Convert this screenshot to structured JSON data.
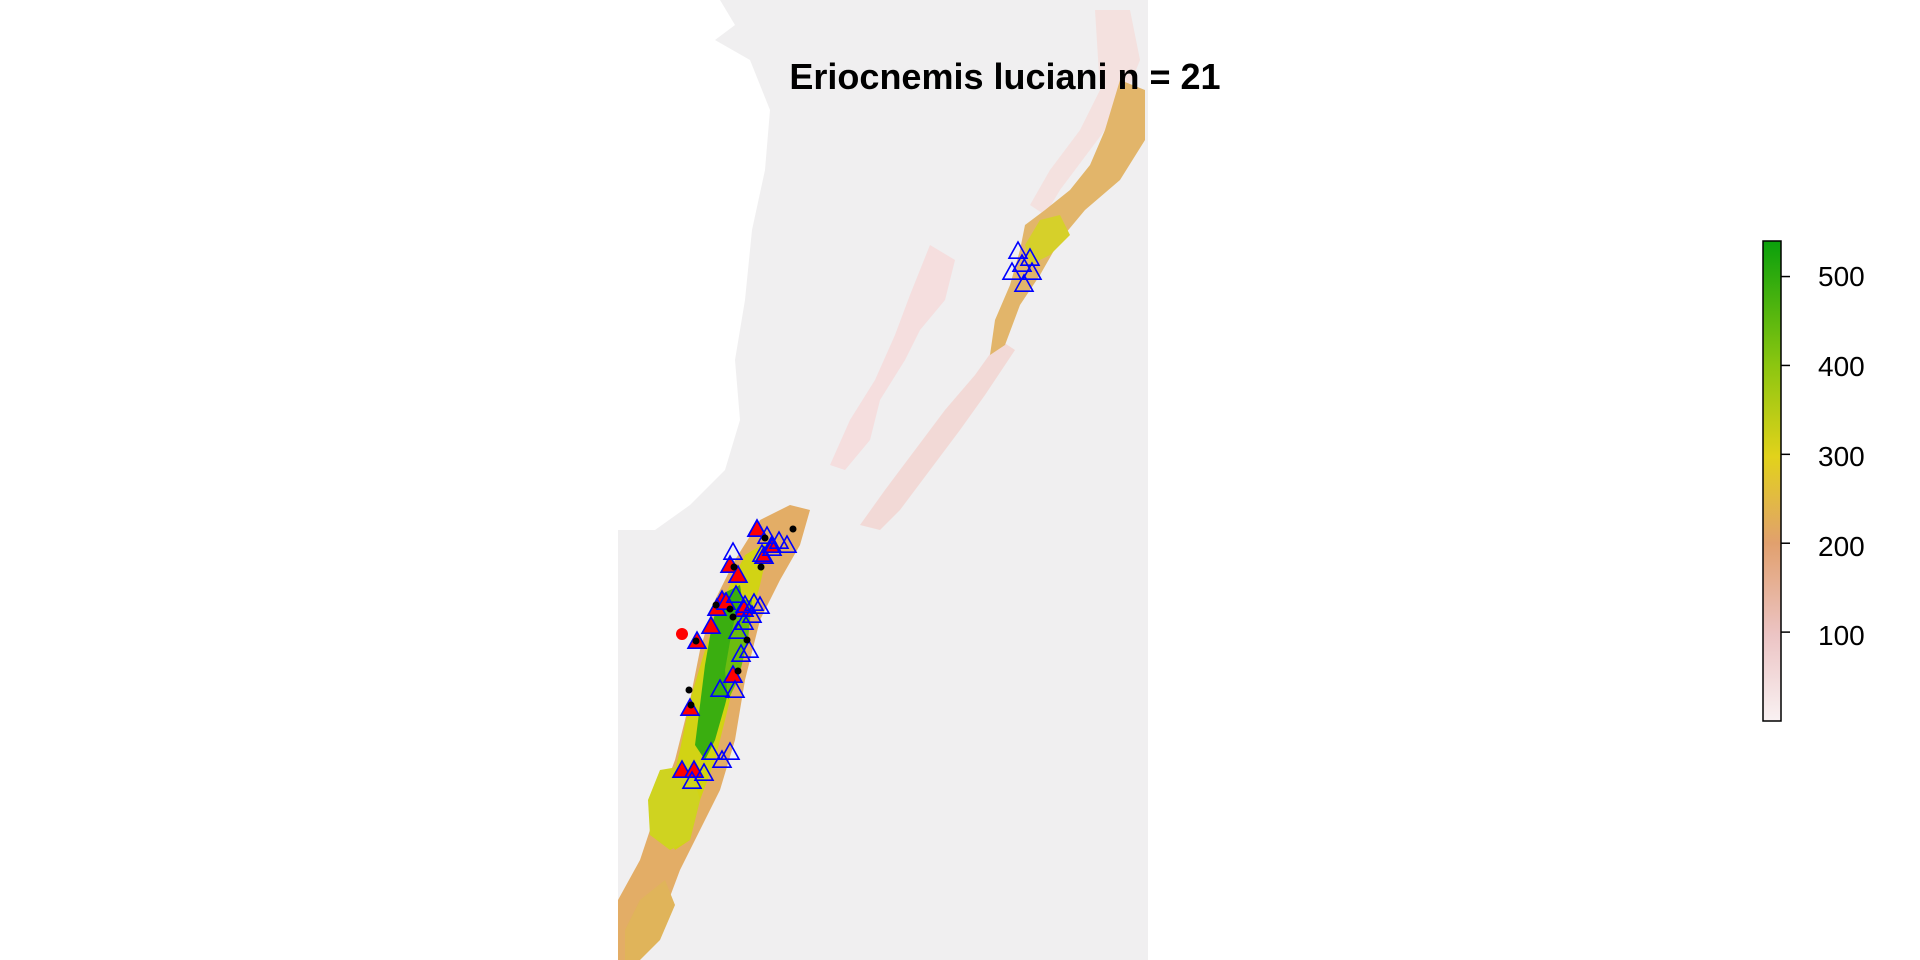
{
  "title": "Eriocnemis luciani n = 21",
  "colors": {
    "background": "#f0eff0",
    "ocean": "#ffffff",
    "low": "#f6e3e4",
    "mid_low": "#e8a58a",
    "mid": "#e2b545",
    "high_mid": "#d6de1c",
    "high": "#1aa30e",
    "triangle_stroke": "#0000ff",
    "point_red": "#ff0000",
    "point_black": "#000000"
  },
  "legend": {
    "type": "continuous-color-bar",
    "ticks": [
      "100",
      "200",
      "300",
      "400",
      "500"
    ],
    "tick_values": [
      100,
      200,
      300,
      400,
      500
    ],
    "range": [
      0,
      540
    ]
  },
  "markers": {
    "open_triangle": "blue open triangle",
    "filled_triangle": "red filled triangle",
    "dot": "black dot",
    "red_dot": "red dot"
  }
}
